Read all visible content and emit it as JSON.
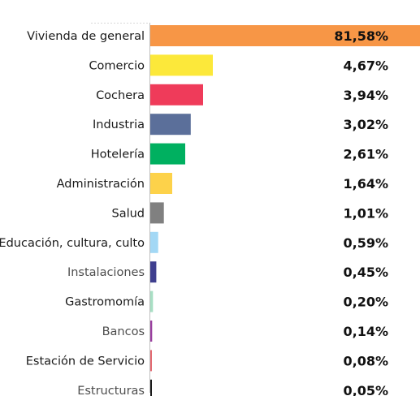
{
  "chart_data": {
    "type": "bar",
    "orientation": "horizontal",
    "categories": [
      "Vivienda de general",
      "Comercio",
      "Cochera",
      "Industria",
      "Hotelería",
      "Administración",
      "Salud",
      "Educación, cultura, culto",
      "Instalaciones",
      "Gastromomía",
      "Bancos",
      "Estación de Servicio",
      "Estructuras"
    ],
    "values": [
      81.58,
      4.67,
      3.94,
      3.02,
      2.61,
      1.64,
      1.01,
      0.59,
      0.45,
      0.2,
      0.14,
      0.08,
      0.05
    ],
    "value_labels": [
      "81,58%",
      "4,67%",
      "3,94%",
      "3,02%",
      "2,61%",
      "1,64%",
      "1,01%",
      "0,59%",
      "0,45%",
      "0,20%",
      "0,14%",
      "0,08%",
      "0,05%"
    ],
    "colors": [
      "#f79646",
      "#fce83a",
      "#ef3b5a",
      "#5b6f9a",
      "#00b060",
      "#fdd24a",
      "#808080",
      "#a3d8f5",
      "#3f3f8f",
      "#a8dfc4",
      "#9a3fa0",
      "#e46a72",
      "#1a1a1a"
    ],
    "light_labels": [
      false,
      false,
      false,
      false,
      false,
      false,
      false,
      false,
      true,
      false,
      true,
      false,
      true
    ],
    "title": "",
    "xlabel": "",
    "ylabel": "",
    "grid": false,
    "legend": "none"
  }
}
